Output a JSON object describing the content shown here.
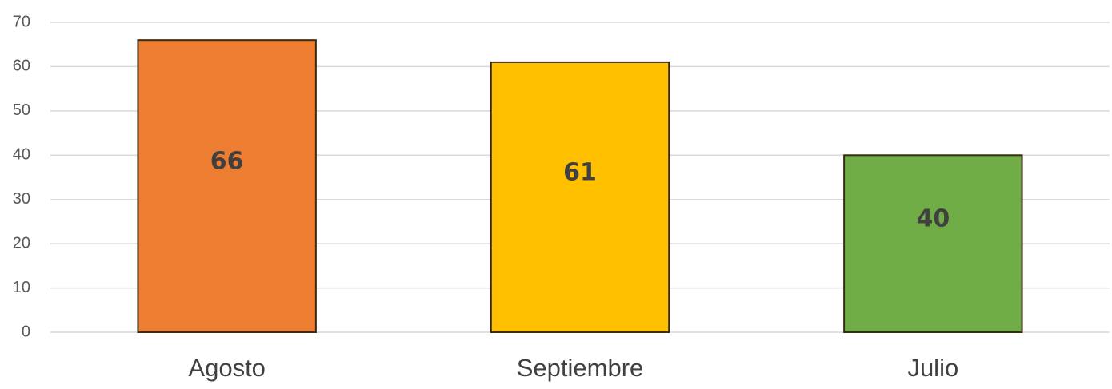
{
  "chart_data": {
    "type": "bar",
    "categories": [
      "Agosto",
      "Septiembre",
      "Julio"
    ],
    "values": [
      66,
      61,
      40
    ],
    "colors": [
      "#ed7d31",
      "#ffc000",
      "#70ad47"
    ],
    "ylim": [
      0,
      70
    ],
    "yticks": [
      0,
      10,
      20,
      30,
      40,
      50,
      60,
      70
    ],
    "grid": true
  }
}
